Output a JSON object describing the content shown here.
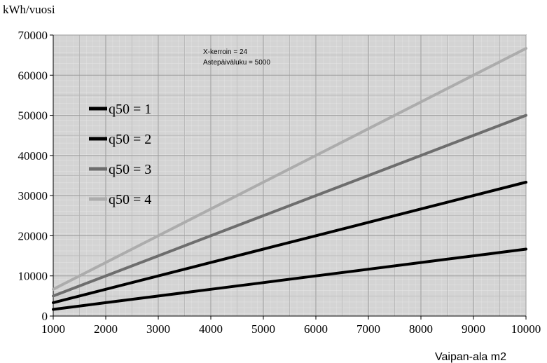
{
  "chart_data": {
    "type": "line",
    "ylabel": "kWh/vuosi",
    "xlabel": "Vaipan-ala m2",
    "x": [
      1000,
      2000,
      3000,
      4000,
      5000,
      6000,
      7000,
      8000,
      9000,
      10000
    ],
    "xlim": [
      1000,
      10000
    ],
    "ylim": [
      0,
      70000
    ],
    "x_ticks": [
      "1000",
      "2000",
      "3000",
      "4000",
      "5000",
      "6000",
      "7000",
      "8000",
      "9000",
      "10000"
    ],
    "y_ticks": [
      "0",
      "10000",
      "20000",
      "30000",
      "40000",
      "50000",
      "60000",
      "70000"
    ],
    "grid": true,
    "legend_position": "left",
    "annotations": [
      "X-kerroin = 24",
      "Astepäiväluku = 5000"
    ],
    "series": [
      {
        "name": "q50 = 1",
        "color": "#000000",
        "values": [
          1667,
          3333,
          5000,
          6667,
          8333,
          10000,
          11667,
          13333,
          15000,
          16667
        ]
      },
      {
        "name": "q50 = 2",
        "color": "#000000",
        "values": [
          3333,
          6667,
          10000,
          13333,
          16667,
          20000,
          23333,
          26667,
          30000,
          33333
        ]
      },
      {
        "name": "q50 = 3",
        "color": "#6d6d6d",
        "values": [
          5000,
          10000,
          15000,
          20000,
          25000,
          30000,
          35000,
          40000,
          45000,
          50000
        ]
      },
      {
        "name": "q50 = 4",
        "color": "#acacac",
        "values": [
          6667,
          13333,
          20000,
          26667,
          33333,
          40000,
          46667,
          53333,
          60000,
          66667
        ]
      }
    ]
  }
}
